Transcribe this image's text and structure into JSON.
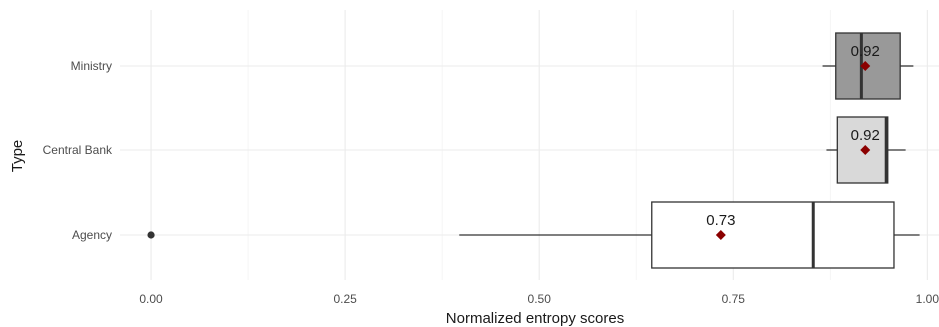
{
  "chart_data": {
    "type": "boxplot",
    "xlabel": "Normalized entropy scores",
    "ylabel": "Type",
    "xlim": [
      -0.04,
      1.015
    ],
    "x_ticks": [
      0.0,
      0.25,
      0.5,
      0.75,
      1.0
    ],
    "x_tick_labels": [
      "0.00",
      "0.25",
      "0.50",
      "0.75",
      "1.00"
    ],
    "grid": true,
    "categories": [
      "Ministry",
      "Central Bank",
      "Agency"
    ],
    "boxes": [
      {
        "category": "Ministry",
        "whisker_low": 0.865,
        "q1": 0.882,
        "median": 0.915,
        "q3": 0.965,
        "whisker_high": 0.982,
        "mean": 0.92,
        "mean_label": "0.92",
        "outliers": [],
        "fill": "#999999"
      },
      {
        "category": "Central Bank",
        "whisker_low": 0.87,
        "q1": 0.884,
        "median": 0.947,
        "q3": 0.949,
        "whisker_high": 0.972,
        "mean": 0.92,
        "mean_label": "0.92",
        "outliers": [],
        "fill": "#d9d9d9"
      },
      {
        "category": "Agency",
        "whisker_low": 0.397,
        "q1": 0.645,
        "median": 0.853,
        "q3": 0.957,
        "whisker_high": 0.99,
        "mean": 0.734,
        "mean_label": "0.73",
        "outliers": [
          0.0
        ],
        "fill": "#ffffff"
      }
    ],
    "mean_marker_color": "#8b0000",
    "outlier_color": "#333333",
    "grid_color": "#ebebeb"
  }
}
